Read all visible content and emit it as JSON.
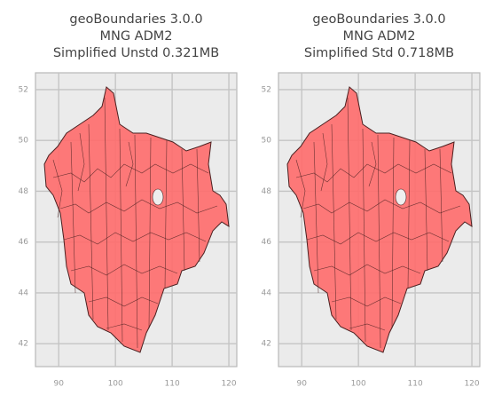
{
  "chart_data": [
    {
      "type": "map",
      "title": [
        "geoBoundaries 3.0.0",
        "MNG ADM2",
        "Simplified Unstd 0.321MB"
      ],
      "xlim": [
        85.9,
        121.4
      ],
      "xticks": [
        90,
        100,
        110,
        120
      ],
      "ylim": [
        41.1,
        52.66
      ],
      "yticks": [
        42,
        44,
        46,
        48,
        50,
        52
      ],
      "grid": true,
      "color": "#ff6b6b"
    },
    {
      "type": "map",
      "title": [
        "geoBoundaries 3.0.0",
        "MNG ADM2",
        "Simplified Std 0.718MB"
      ],
      "xlim": [
        85.9,
        121.4
      ],
      "xticks": [
        90,
        100,
        110,
        120
      ],
      "ylim": [
        41.1,
        52.66
      ],
      "yticks": [
        42,
        44,
        46,
        48,
        50,
        52
      ],
      "grid": true,
      "color": "#ff6b6b"
    }
  ]
}
